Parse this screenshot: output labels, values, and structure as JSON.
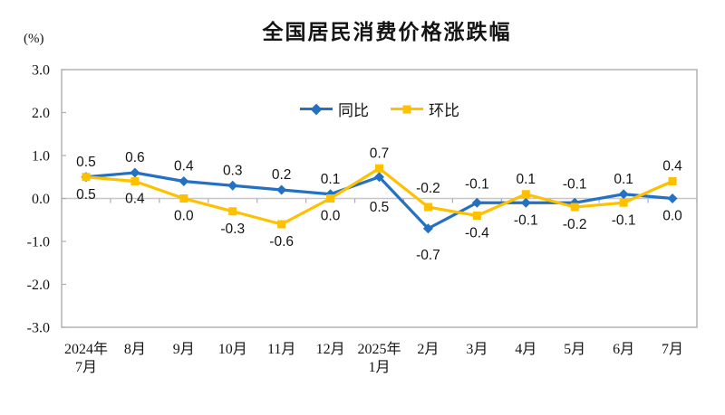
{
  "chart_data": {
    "type": "line",
    "title": "全国居民消费价格涨跌幅",
    "ylabel": "(%)",
    "xlabel": "",
    "ylim": [
      -3.0,
      3.0
    ],
    "yticks": [
      "3.0",
      "2.0",
      "1.0",
      "0.0",
      "-1.0",
      "-2.0",
      "-3.0"
    ],
    "grid": false,
    "legend_position": "top-center",
    "axis_color": "#ADADAD",
    "zero_line_color": "#C6C6C6",
    "text_color": "#141414",
    "categories": [
      [
        "2024年",
        "7月"
      ],
      [
        "8月"
      ],
      [
        "9月"
      ],
      [
        "10月"
      ],
      [
        "11月"
      ],
      [
        "12月"
      ],
      [
        "2025年",
        "1月"
      ],
      [
        "2月"
      ],
      [
        "3月"
      ],
      [
        "4月"
      ],
      [
        "5月"
      ],
      [
        "6月"
      ],
      [
        "7月"
      ]
    ],
    "series": [
      {
        "name": "同比",
        "id": "yoy",
        "color": "#2470C3",
        "marker": "diamond",
        "values": [
          0.5,
          0.6,
          0.4,
          0.3,
          0.2,
          0.1,
          0.5,
          -0.7,
          -0.1,
          -0.1,
          -0.1,
          0.1,
          0.0
        ],
        "labels": [
          "0.5",
          "0.6",
          "0.4",
          "0.3",
          "0.2",
          "0.1",
          "0.5",
          "-0.7",
          "-0.1",
          "-0.1",
          "-0.1",
          "0.1",
          "0.0"
        ],
        "label_side": [
          "above",
          "above",
          "above",
          "above",
          "above",
          "above",
          "below",
          "below",
          "above",
          "below",
          "above",
          "above",
          "below"
        ]
      },
      {
        "name": "环比",
        "id": "mom",
        "color": "#FFC000",
        "marker": "square",
        "values": [
          0.5,
          0.4,
          0.0,
          -0.3,
          -0.6,
          0.0,
          0.7,
          -0.2,
          -0.4,
          0.1,
          -0.2,
          -0.1,
          0.4
        ],
        "labels": [
          "0.5",
          "0.4",
          "0.0",
          "-0.3",
          "-0.6",
          "0.0",
          "0.7",
          "-0.2",
          "-0.4",
          "0.1",
          "-0.2",
          "-0.1",
          "0.4"
        ],
        "label_side": [
          "below",
          "below",
          "below",
          "below",
          "below",
          "below",
          "above",
          "above",
          "below",
          "above",
          "below",
          "below",
          "above"
        ]
      }
    ]
  }
}
